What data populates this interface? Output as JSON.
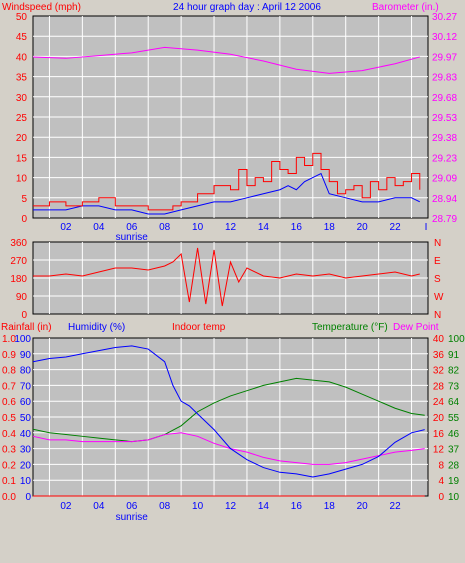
{
  "title": "24 hour graph day : April 12 2006",
  "colors": {
    "background": "#d4d0c8",
    "plot_bg": "#c0c0c0",
    "grid": "#ffffff",
    "windspeed": "#ff0000",
    "gust": "#0000ff",
    "barometer": "#ff00ff",
    "direction": "#ff0000",
    "rain": "#ff0000",
    "humidity": "#0000ff",
    "indoor": "#ff0000",
    "temperature": "#008000",
    "dewpoint": "#ff00ff"
  },
  "chart_data": [
    {
      "type": "line",
      "title": "24 hour graph day : April 12 2006",
      "left_label": "Windspeed (mph)",
      "right_label": "Barometer (in.)",
      "y_ticks": [
        "0",
        "5",
        "10",
        "15",
        "20",
        "25",
        "30",
        "35",
        "40",
        "45",
        "50"
      ],
      "y_right_ticks": [
        "28.79",
        "28.94",
        "29.09",
        "29.23",
        "29.38",
        "29.53",
        "29.68",
        "29.83",
        "29.97",
        "30.12",
        "30.27"
      ],
      "ylim": [
        0,
        50
      ],
      "y_right_lim": [
        28.79,
        30.27
      ],
      "x_ticks": [
        "02",
        "04",
        "06",
        "08",
        "10",
        "12",
        "14",
        "16",
        "18",
        "20",
        "22"
      ],
      "x_extra_label": "sunrise",
      "series": [
        {
          "name": "Windspeed",
          "x": [
            0,
            1,
            2,
            3,
            4,
            5,
            6,
            7,
            8,
            8.5,
            9,
            10,
            11,
            12,
            12.5,
            13,
            13.5,
            14,
            14.5,
            15,
            15.5,
            16,
            16.5,
            17,
            17.5,
            18,
            18.5,
            19,
            19.5,
            20,
            20.5,
            21,
            21.5,
            22,
            22.5,
            23,
            23.5
          ],
          "values": [
            3,
            4,
            3,
            4,
            5,
            3,
            3,
            2,
            2,
            3,
            4,
            6,
            8,
            7,
            12,
            8,
            10,
            9,
            14,
            12,
            11,
            15,
            13,
            16,
            12,
            9,
            6,
            7,
            8,
            5,
            9,
            7,
            10,
            8,
            9,
            11,
            7
          ]
        },
        {
          "name": "Gust",
          "x": [
            0,
            1,
            2,
            3,
            4,
            5,
            6,
            7,
            8,
            9,
            10,
            11,
            12,
            13,
            14,
            15,
            15.5,
            16,
            16.5,
            17,
            17.5,
            18,
            19,
            20,
            21,
            22,
            23,
            23.5
          ],
          "values": [
            2,
            2,
            2,
            3,
            3,
            2,
            2,
            1,
            1,
            2,
            3,
            4,
            4,
            5,
            6,
            7,
            8,
            7,
            9,
            10,
            11,
            6,
            5,
            4,
            4,
            5,
            5,
            4
          ]
        },
        {
          "name": "Barometer",
          "x": [
            0,
            2,
            4,
            6,
            8,
            10,
            12,
            14,
            16,
            18,
            20,
            22,
            23.5
          ],
          "values": [
            29.97,
            29.96,
            29.98,
            30.0,
            30.04,
            30.02,
            29.99,
            29.94,
            29.88,
            29.85,
            29.87,
            29.92,
            29.97
          ]
        }
      ]
    },
    {
      "type": "scatter",
      "y_ticks": [
        "0",
        "90",
        "180",
        "270",
        "360"
      ],
      "y_right_ticks": [
        "N",
        "W",
        "S",
        "E",
        "N"
      ],
      "ylim": [
        0,
        360
      ],
      "series": [
        {
          "name": "Direction",
          "x": [
            0,
            1,
            2,
            3,
            4,
            5,
            6,
            7,
            8,
            8.5,
            9,
            9.5,
            10,
            10.5,
            11,
            11.5,
            12,
            12.5,
            13,
            14,
            15,
            16,
            17,
            18,
            19,
            20,
            21,
            22,
            23,
            23.5
          ],
          "values": [
            190,
            190,
            200,
            190,
            210,
            230,
            230,
            220,
            240,
            260,
            300,
            60,
            330,
            50,
            320,
            40,
            260,
            160,
            230,
            190,
            180,
            200,
            190,
            200,
            180,
            190,
            200,
            210,
            190,
            200
          ]
        }
      ]
    },
    {
      "type": "line",
      "labels": [
        "Rainfall (in)",
        "Humidity (%)",
        "Indoor temp",
        "Temperature (°F)",
        "Dew Point"
      ],
      "y_ticks_rain": [
        "0.0",
        "0.1",
        "0.2",
        "0.3",
        "0.4",
        "0.5",
        "0.6",
        "0.7",
        "0.8",
        "0.9",
        "1.0"
      ],
      "y_ticks_humidity": [
        "0",
        "10",
        "20",
        "30",
        "40",
        "50",
        "60",
        "70",
        "80",
        "90",
        "100"
      ],
      "y_ticks_indoor": [
        "0",
        "4",
        "8",
        "12",
        "16",
        "20",
        "24",
        "28",
        "32",
        "36",
        "40"
      ],
      "y_ticks_temp": [
        "10",
        "19",
        "28",
        "37",
        "46",
        "55",
        "64",
        "73",
        "82",
        "91",
        "100"
      ],
      "x_ticks": [
        "02",
        "04",
        "06",
        "08",
        "10",
        "12",
        "14",
        "16",
        "18",
        "20",
        "22"
      ],
      "x_extra_label": "sunrise",
      "series": [
        {
          "name": "Rainfall",
          "x": [
            0,
            23.8
          ],
          "values": [
            0,
            0
          ]
        },
        {
          "name": "Humidity",
          "x": [
            0,
            1,
            2,
            3,
            4,
            5,
            6,
            7,
            8,
            8.5,
            9,
            9.5,
            10,
            11,
            12,
            13,
            14,
            15,
            16,
            17,
            18,
            19,
            20,
            21,
            22,
            23,
            23.8
          ],
          "values": [
            85,
            87,
            88,
            90,
            92,
            94,
            95,
            93,
            85,
            70,
            60,
            57,
            52,
            42,
            30,
            23,
            18,
            15,
            14,
            12,
            14,
            17,
            20,
            25,
            34,
            40,
            42
          ]
        },
        {
          "name": "Temperature",
          "x": [
            0,
            1,
            2,
            3,
            4,
            5,
            6,
            7,
            8,
            9,
            10,
            11,
            12,
            13,
            14,
            15,
            16,
            17,
            18,
            19,
            20,
            21,
            22,
            23,
            23.8
          ],
          "values": [
            48,
            46,
            45,
            44,
            43,
            42,
            41,
            42,
            45,
            50,
            58,
            63,
            67,
            70,
            73,
            75,
            77,
            76,
            75,
            72,
            68,
            64,
            60,
            57,
            56
          ]
        },
        {
          "name": "Dew Point",
          "x": [
            0,
            1,
            2,
            3,
            4,
            5,
            6,
            7,
            8,
            9,
            10,
            11,
            12,
            13,
            14,
            15,
            16,
            17,
            18,
            19,
            20,
            21,
            22,
            23,
            23.8
          ],
          "values": [
            44,
            42,
            42,
            41,
            41,
            41,
            41,
            42,
            45,
            46,
            44,
            40,
            37,
            35,
            32,
            30,
            29,
            28,
            28,
            29,
            31,
            33,
            35,
            36,
            37
          ]
        }
      ]
    }
  ]
}
